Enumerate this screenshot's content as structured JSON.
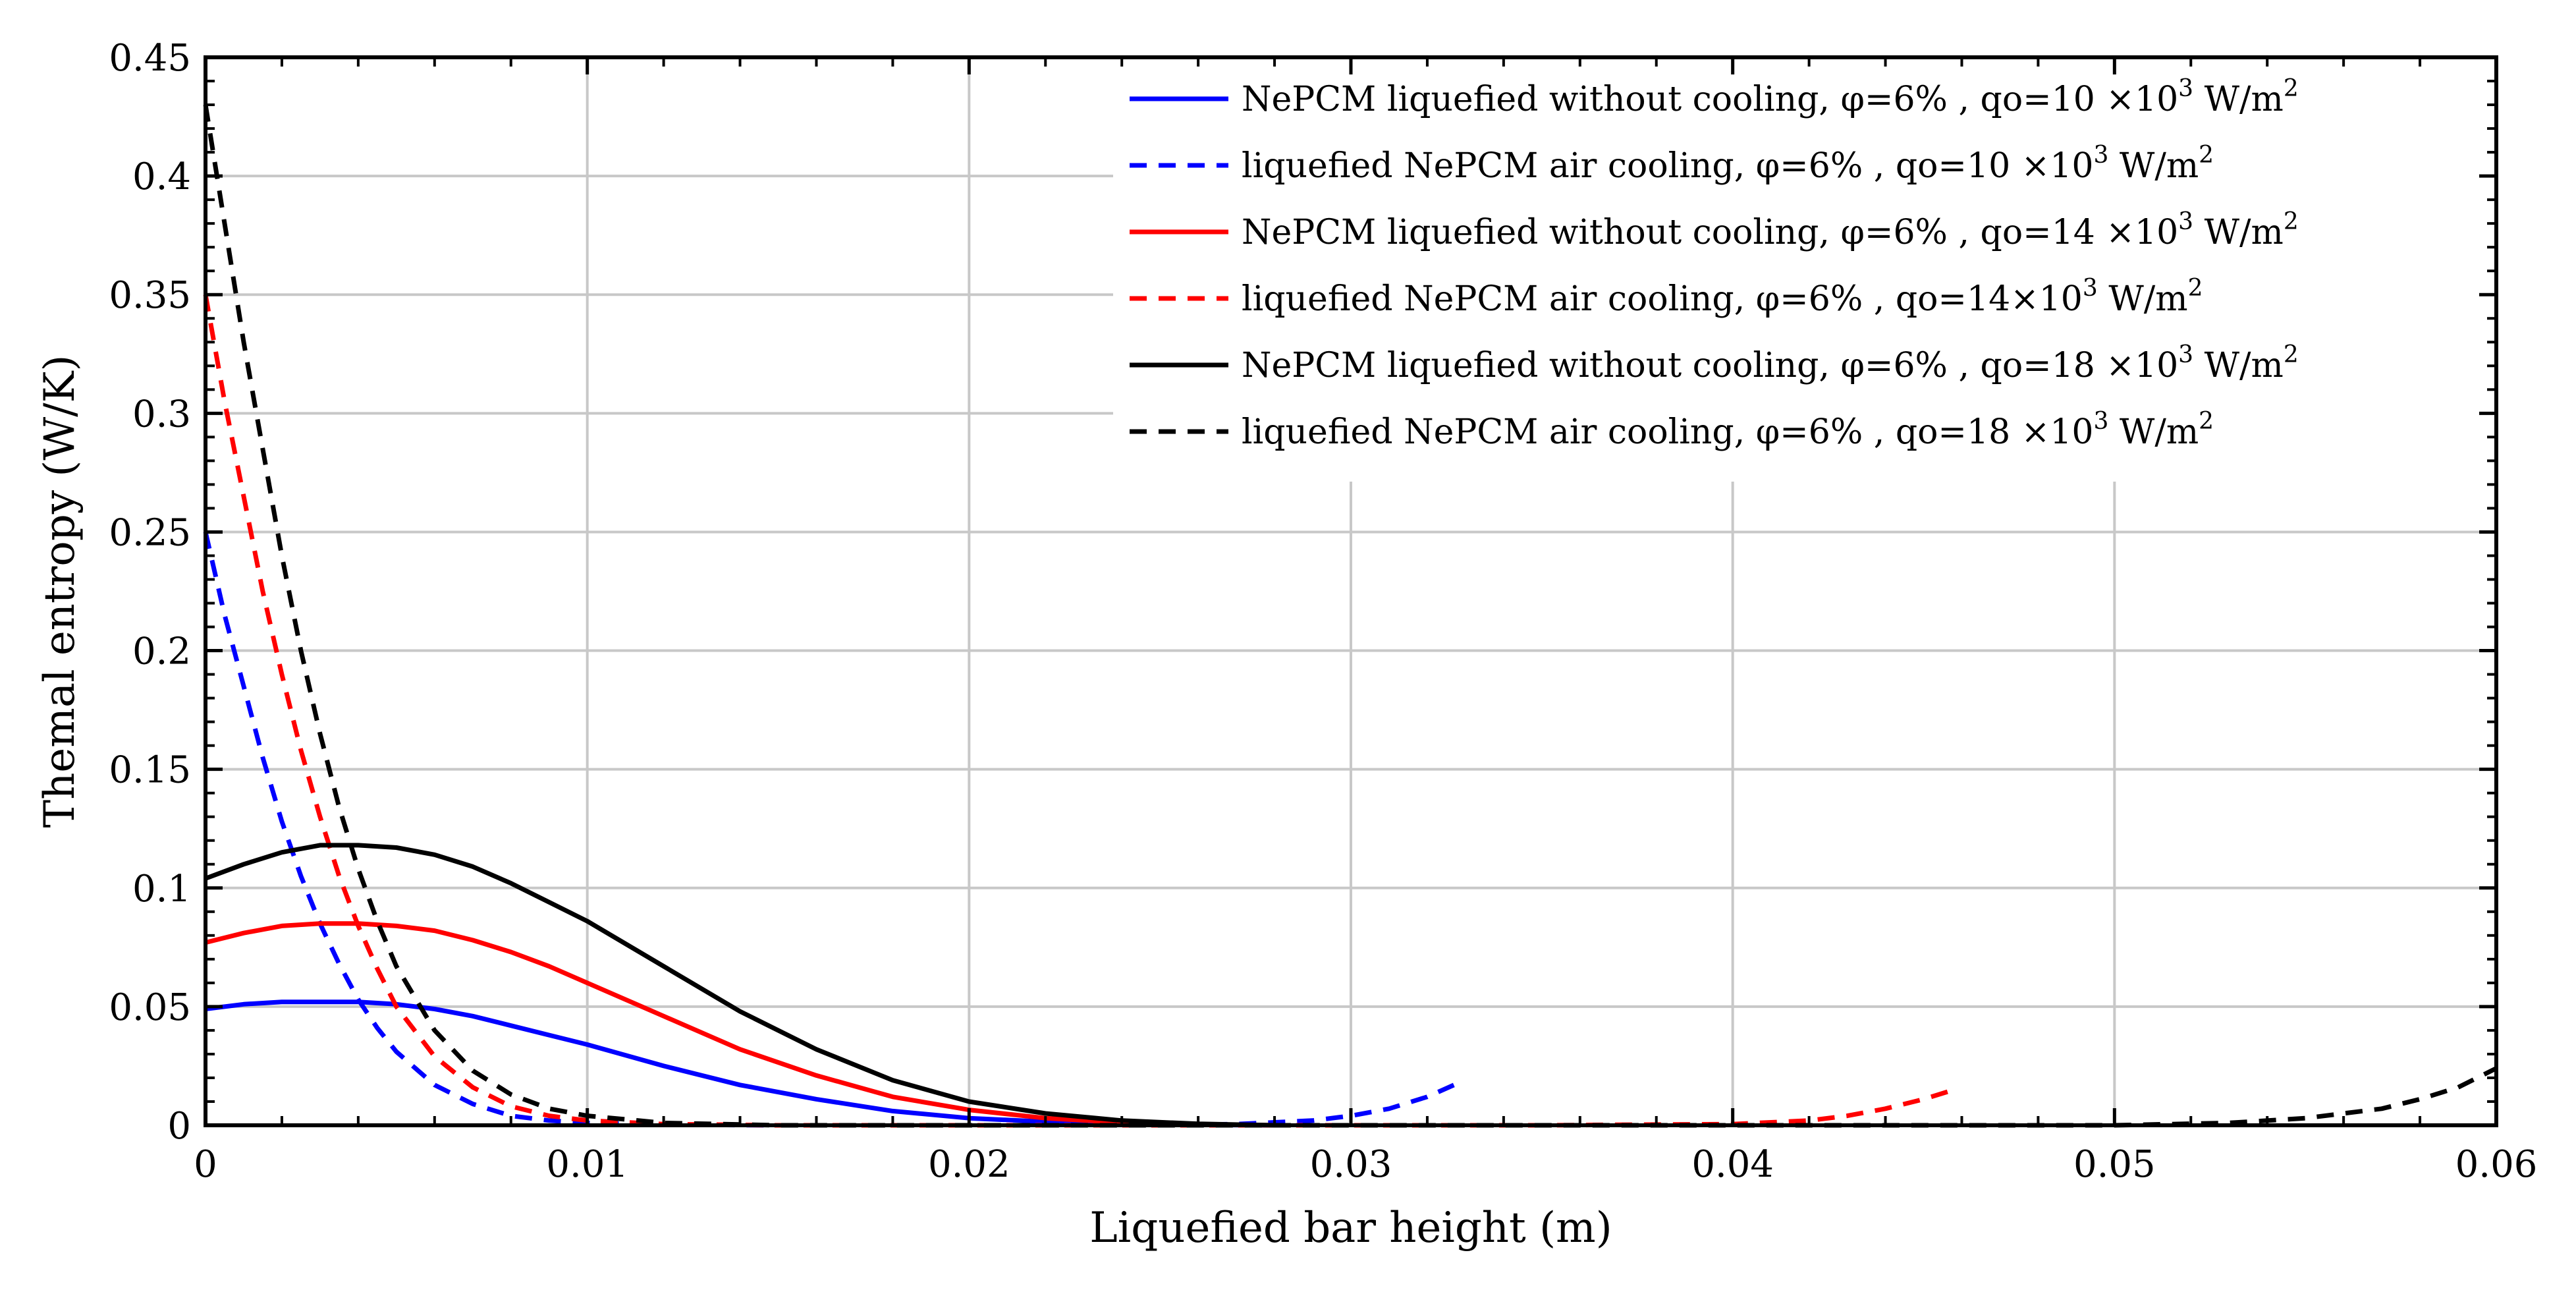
{
  "chart_data": {
    "type": "line",
    "title": "",
    "xlabel": "Liquefied bar height (m)",
    "ylabel": "Themal entropy (W/K)",
    "xlim": [
      0,
      0.06
    ],
    "ylim": [
      0,
      0.45
    ],
    "grid": true,
    "legend_position": "top-right",
    "x_ticks": [
      {
        "value": 0,
        "label": "0"
      },
      {
        "value": 0.01,
        "label": "0.01"
      },
      {
        "value": 0.02,
        "label": "0.02"
      },
      {
        "value": 0.03,
        "label": "0.03"
      },
      {
        "value": 0.04,
        "label": "0.04"
      },
      {
        "value": 0.05,
        "label": "0.05"
      },
      {
        "value": 0.06,
        "label": "0.06"
      }
    ],
    "y_ticks": [
      {
        "value": 0,
        "label": "0"
      },
      {
        "value": 0.05,
        "label": "0.05"
      },
      {
        "value": 0.1,
        "label": "0.1"
      },
      {
        "value": 0.15,
        "label": "0.15"
      },
      {
        "value": 0.2,
        "label": "0.2"
      },
      {
        "value": 0.25,
        "label": "0.25"
      },
      {
        "value": 0.3,
        "label": "0.3"
      },
      {
        "value": 0.35,
        "label": "0.35"
      },
      {
        "value": 0.4,
        "label": "0.4"
      },
      {
        "value": 0.45,
        "label": "0.45"
      }
    ],
    "series": [
      {
        "name": "NePCM liquefied without cooling, φ=6% , qo=10 ×10³ W/m²",
        "legend": {
          "text": "NePCM liquefied without cooling, φ=6% , qo=10 ×10",
          "sup1": "3",
          "unit": " W/m",
          "sup2": "2"
        },
        "color": "#0000ff",
        "dash": "solid",
        "x": [
          0,
          0.001,
          0.002,
          0.003,
          0.004,
          0.005,
          0.006,
          0.007,
          0.008,
          0.009,
          0.01,
          0.012,
          0.014,
          0.016,
          0.018,
          0.02,
          0.022,
          0.024,
          0.026,
          0.028
        ],
        "y": [
          0.049,
          0.051,
          0.052,
          0.052,
          0.052,
          0.051,
          0.049,
          0.046,
          0.042,
          0.038,
          0.034,
          0.025,
          0.017,
          0.011,
          0.006,
          0.003,
          0.0015,
          0.0005,
          0.0002,
          0.0
        ]
      },
      {
        "name": "liquefied NePCM air cooling, φ=6% , qo=10 ×10³ W/m²",
        "legend": {
          "text": "liquefied NePCM air cooling, φ=6% , qo=10 ×10",
          "sup1": "3",
          "unit": " W/m",
          "sup2": "2"
        },
        "color": "#0000ff",
        "dash": "dashed",
        "x": [
          0,
          0.0005,
          0.001,
          0.0015,
          0.002,
          0.0025,
          0.003,
          0.0035,
          0.004,
          0.0045,
          0.005,
          0.006,
          0.007,
          0.008,
          0.009,
          0.01,
          0.012,
          0.015,
          0.018,
          0.021,
          0.024,
          0.027,
          0.029,
          0.03,
          0.031,
          0.032,
          0.0327
        ],
        "y": [
          0.25,
          0.215,
          0.185,
          0.155,
          0.128,
          0.105,
          0.085,
          0.068,
          0.053,
          0.041,
          0.031,
          0.017,
          0.009,
          0.004,
          0.002,
          0.001,
          0.0003,
          0.0,
          0.0,
          0.0,
          0.0,
          0.0005,
          0.002,
          0.004,
          0.007,
          0.012,
          0.017
        ]
      },
      {
        "name": "NePCM liquefied without cooling, φ=6% , qo=14 ×10³ W/m²",
        "legend": {
          "text": "NePCM liquefied without cooling, φ=6% , qo=14 ×10",
          "sup1": "3",
          "unit": " W/m",
          "sup2": "2"
        },
        "color": "#ff0000",
        "dash": "solid",
        "x": [
          0,
          0.001,
          0.002,
          0.003,
          0.004,
          0.005,
          0.006,
          0.007,
          0.008,
          0.009,
          0.01,
          0.012,
          0.014,
          0.016,
          0.018,
          0.02,
          0.022,
          0.024,
          0.026,
          0.028
        ],
        "y": [
          0.077,
          0.081,
          0.084,
          0.085,
          0.085,
          0.084,
          0.082,
          0.078,
          0.073,
          0.067,
          0.06,
          0.046,
          0.032,
          0.021,
          0.012,
          0.0065,
          0.003,
          0.0012,
          0.0004,
          0.0
        ]
      },
      {
        "name": "liquefied NePCM air cooling, φ=6% , qo=14×10³ W/m²",
        "legend": {
          "text": "liquefied NePCM air cooling, φ=6% , qo=14×10",
          "sup1": "3",
          "unit": " W/m",
          "sup2": "2"
        },
        "color": "#ff0000",
        "dash": "dashed",
        "x": [
          0,
          0.0005,
          0.001,
          0.0015,
          0.002,
          0.0025,
          0.003,
          0.0035,
          0.004,
          0.0045,
          0.005,
          0.006,
          0.007,
          0.008,
          0.009,
          0.01,
          0.012,
          0.015,
          0.02,
          0.025,
          0.03,
          0.035,
          0.04,
          0.042,
          0.043,
          0.044,
          0.045,
          0.0458
        ],
        "y": [
          0.35,
          0.305,
          0.265,
          0.225,
          0.19,
          0.158,
          0.13,
          0.105,
          0.084,
          0.066,
          0.05,
          0.029,
          0.016,
          0.008,
          0.004,
          0.002,
          0.0005,
          0.0,
          0.0,
          0.0,
          0.0,
          0.0,
          0.0005,
          0.002,
          0.004,
          0.007,
          0.011,
          0.015
        ]
      },
      {
        "name": "NePCM liquefied without cooling, φ=6% , qo=18 ×10³ W/m²",
        "legend": {
          "text": "NePCM liquefied without cooling, φ=6% , qo=18 ×10",
          "sup1": "3",
          "unit": " W/m",
          "sup2": "2"
        },
        "color": "#000000",
        "dash": "solid",
        "x": [
          0,
          0.001,
          0.002,
          0.003,
          0.004,
          0.005,
          0.006,
          0.007,
          0.008,
          0.009,
          0.01,
          0.012,
          0.014,
          0.016,
          0.018,
          0.02,
          0.022,
          0.024,
          0.026,
          0.028
        ],
        "y": [
          0.104,
          0.11,
          0.115,
          0.118,
          0.118,
          0.117,
          0.114,
          0.109,
          0.102,
          0.094,
          0.086,
          0.067,
          0.048,
          0.032,
          0.019,
          0.01,
          0.005,
          0.002,
          0.0006,
          0.0
        ]
      },
      {
        "name": "liquefied NePCM air cooling, φ=6% , qo=18 ×10³ W/m²",
        "legend": {
          "text": "liquefied NePCM air cooling, φ=6% , qo=18 ×10",
          "sup1": "3",
          "unit": " W/m",
          "sup2": "2"
        },
        "color": "#000000",
        "dash": "dashed",
        "x": [
          0,
          0.0005,
          0.001,
          0.0015,
          0.002,
          0.0025,
          0.003,
          0.0035,
          0.004,
          0.0045,
          0.005,
          0.006,
          0.007,
          0.008,
          0.009,
          0.01,
          0.012,
          0.015,
          0.02,
          0.03,
          0.04,
          0.05,
          0.053,
          0.055,
          0.057,
          0.058,
          0.059,
          0.06
        ],
        "y": [
          0.43,
          0.38,
          0.33,
          0.285,
          0.24,
          0.2,
          0.165,
          0.134,
          0.108,
          0.086,
          0.067,
          0.04,
          0.023,
          0.013,
          0.007,
          0.004,
          0.001,
          0.0,
          0.0,
          0.0,
          0.0,
          0.0,
          0.001,
          0.003,
          0.007,
          0.011,
          0.016,
          0.024
        ]
      }
    ]
  }
}
